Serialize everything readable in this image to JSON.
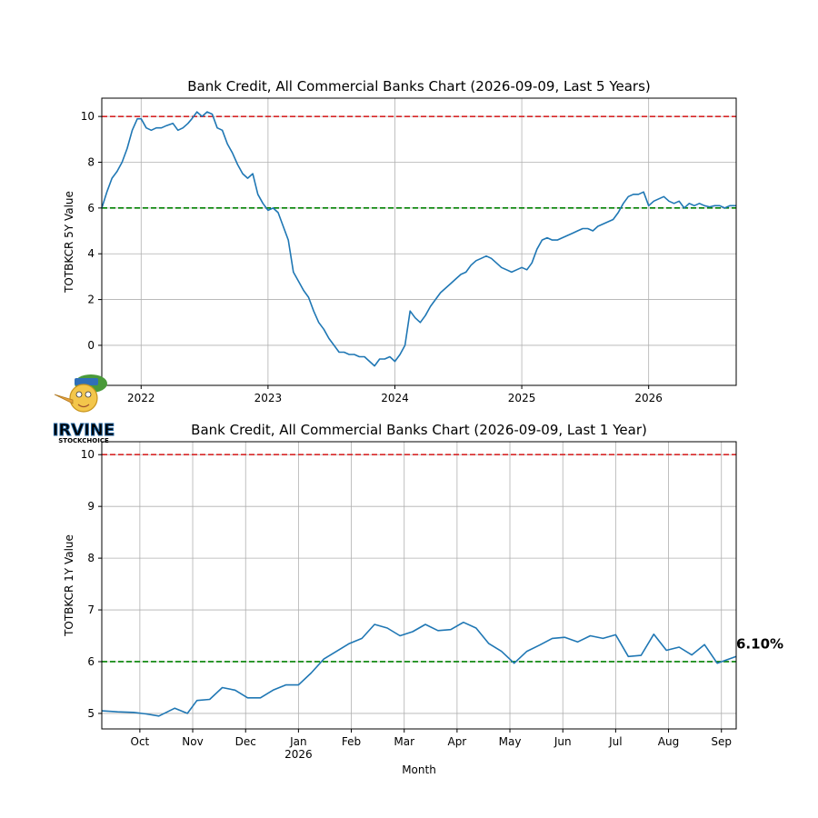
{
  "colors": {
    "line": "#1f77b4",
    "ref_high": "#d62728",
    "ref_low": "#008000",
    "grid": "#b0b0b0"
  },
  "logo": {
    "text": "IRVINE",
    "subtext": "STOCKCHOICE"
  },
  "chart_data": [
    {
      "type": "line",
      "title": "Bank Credit, All Commercial Banks Chart (2026-09-09, Last 5 Years)",
      "xlabel": "",
      "ylabel": "TOTBKCR 5Y Value",
      "xlim": [
        2021.69,
        2026.69
      ],
      "ylim": [
        -1.75,
        10.8
      ],
      "x_ticks": [
        2022,
        2023,
        2024,
        2025,
        2026
      ],
      "x_tick_labels": [
        "2022",
        "2023",
        "2024",
        "2025",
        "2026"
      ],
      "y_ticks": [
        0,
        2,
        4,
        6,
        8,
        10
      ],
      "y_tick_labels": [
        "0",
        "2",
        "4",
        "6",
        "8",
        "10"
      ],
      "grid": true,
      "reference_lines": [
        {
          "y": 10,
          "style": "dashed",
          "color": "red"
        },
        {
          "y": 6,
          "style": "dashed",
          "color": "green"
        }
      ],
      "x": [
        2021.69,
        2021.73,
        2021.77,
        2021.81,
        2021.85,
        2021.89,
        2021.93,
        2021.97,
        2022.0,
        2022.04,
        2022.08,
        2022.12,
        2022.16,
        2022.2,
        2022.25,
        2022.29,
        2022.33,
        2022.37,
        2022.4,
        2022.44,
        2022.48,
        2022.52,
        2022.56,
        2022.6,
        2022.64,
        2022.68,
        2022.72,
        2022.76,
        2022.8,
        2022.84,
        2022.88,
        2022.92,
        2022.96,
        2023.0,
        2023.04,
        2023.08,
        2023.12,
        2023.16,
        2023.2,
        2023.24,
        2023.28,
        2023.32,
        2023.36,
        2023.4,
        2023.44,
        2023.48,
        2023.52,
        2023.56,
        2023.6,
        2023.64,
        2023.68,
        2023.72,
        2023.76,
        2023.8,
        2023.84,
        2023.88,
        2023.92,
        2023.96,
        2024.0,
        2024.04,
        2024.08,
        2024.12,
        2024.16,
        2024.2,
        2024.24,
        2024.28,
        2024.32,
        2024.36,
        2024.4,
        2024.44,
        2024.48,
        2024.52,
        2024.56,
        2024.6,
        2024.64,
        2024.68,
        2024.72,
        2024.76,
        2024.8,
        2024.84,
        2024.88,
        2024.92,
        2024.96,
        2025.0,
        2025.04,
        2025.08,
        2025.12,
        2025.16,
        2025.2,
        2025.24,
        2025.28,
        2025.32,
        2025.36,
        2025.4,
        2025.44,
        2025.48,
        2025.52,
        2025.56,
        2025.6,
        2025.64,
        2025.68,
        2025.72,
        2025.76,
        2025.8,
        2025.84,
        2025.88,
        2025.92,
        2025.96,
        2026.0,
        2026.04,
        2026.08,
        2026.12,
        2026.16,
        2026.2,
        2026.24,
        2026.28,
        2026.32,
        2026.36,
        2026.4,
        2026.44,
        2026.48,
        2026.52,
        2026.56,
        2026.6,
        2026.64,
        2026.69
      ],
      "values": [
        6.0,
        6.7,
        7.3,
        7.6,
        8.0,
        8.6,
        9.4,
        9.9,
        9.9,
        9.5,
        9.4,
        9.5,
        9.5,
        9.6,
        9.7,
        9.4,
        9.5,
        9.7,
        9.9,
        10.2,
        10.0,
        10.2,
        10.1,
        9.5,
        9.4,
        8.8,
        8.4,
        7.9,
        7.5,
        7.3,
        7.5,
        6.6,
        6.2,
        5.9,
        6.0,
        5.8,
        5.2,
        4.6,
        3.2,
        2.8,
        2.4,
        2.1,
        1.5,
        1.0,
        0.7,
        0.3,
        0.0,
        -0.3,
        -0.3,
        -0.4,
        -0.4,
        -0.5,
        -0.5,
        -0.7,
        -0.9,
        -0.6,
        -0.6,
        -0.5,
        -0.7,
        -0.4,
        0.0,
        1.5,
        1.2,
        1.0,
        1.3,
        1.7,
        2.0,
        2.3,
        2.5,
        2.7,
        2.9,
        3.1,
        3.2,
        3.5,
        3.7,
        3.8,
        3.9,
        3.8,
        3.6,
        3.4,
        3.3,
        3.2,
        3.3,
        3.4,
        3.3,
        3.6,
        4.2,
        4.6,
        4.7,
        4.6,
        4.6,
        4.7,
        4.8,
        4.9,
        5.0,
        5.1,
        5.1,
        5.0,
        5.2,
        5.3,
        5.4,
        5.5,
        5.8,
        6.2,
        6.5,
        6.6,
        6.6,
        6.7,
        6.1,
        6.3,
        6.4,
        6.5,
        6.3,
        6.2,
        6.3,
        6.0,
        6.2,
        6.1,
        6.2,
        6.1,
        6.05,
        6.1,
        6.1,
        6.0,
        6.1,
        6.1
      ]
    },
    {
      "type": "line",
      "title": "Bank Credit, All Commercial Banks Chart (2026-09-09, Last 1 Year)",
      "xlabel": "Month",
      "ylabel": "TOTBKCR 1Y Value",
      "xlim": [
        2025.69,
        2026.69
      ],
      "ylim": [
        4.7,
        10.25
      ],
      "x_ticks": [
        2025.75,
        2025.8333,
        2025.9167,
        2026.0,
        2026.0833,
        2026.1667,
        2026.25,
        2026.3333,
        2026.4167,
        2026.5,
        2026.5833,
        2026.6667
      ],
      "x_tick_labels": [
        "Oct",
        "Nov",
        "Dec",
        "Jan",
        "Feb",
        "Mar",
        "Apr",
        "May",
        "Jun",
        "Jul",
        "Aug",
        "Sep"
      ],
      "x_tick_sublabels": [
        "",
        "",
        "",
        "2026",
        "",
        "",
        "",
        "",
        "",
        "",
        "",
        ""
      ],
      "y_ticks": [
        5,
        6,
        7,
        8,
        9,
        10
      ],
      "y_tick_labels": [
        "5",
        "6",
        "7",
        "8",
        "9",
        "10"
      ],
      "grid": true,
      "reference_lines": [
        {
          "y": 10,
          "style": "dashed",
          "color": "red"
        },
        {
          "y": 6,
          "style": "dashed",
          "color": "green"
        }
      ],
      "last_value_label": "6.10%",
      "x": [
        2025.69,
        2025.715,
        2025.74,
        2025.76,
        2025.78,
        2025.805,
        2025.825,
        2025.84,
        2025.86,
        2025.88,
        2025.9,
        2025.92,
        2025.94,
        2025.96,
        2025.98,
        2026.0,
        2026.02,
        2026.04,
        2026.06,
        2026.08,
        2026.1,
        2026.12,
        2026.14,
        2026.16,
        2026.18,
        2026.2,
        2026.22,
        2026.24,
        2026.26,
        2026.28,
        2026.3,
        2026.32,
        2026.34,
        2026.36,
        2026.38,
        2026.4,
        2026.42,
        2026.44,
        2026.46,
        2026.48,
        2026.5,
        2026.52,
        2026.54,
        2026.56,
        2026.58,
        2026.6,
        2026.62,
        2026.64,
        2026.66,
        2026.69
      ],
      "values": [
        5.05,
        5.03,
        5.02,
        4.99,
        4.95,
        5.1,
        5.0,
        5.25,
        5.27,
        5.5,
        5.45,
        5.3,
        5.3,
        5.45,
        5.55,
        5.55,
        5.78,
        6.05,
        6.2,
        6.35,
        6.45,
        6.72,
        6.65,
        6.5,
        6.58,
        6.72,
        6.6,
        6.62,
        6.76,
        6.65,
        6.35,
        6.2,
        5.97,
        6.2,
        6.32,
        6.45,
        6.47,
        6.38,
        6.5,
        6.45,
        6.52,
        6.1,
        6.12,
        6.53,
        6.22,
        6.28,
        6.13,
        6.33,
        5.97,
        6.1
      ]
    }
  ]
}
